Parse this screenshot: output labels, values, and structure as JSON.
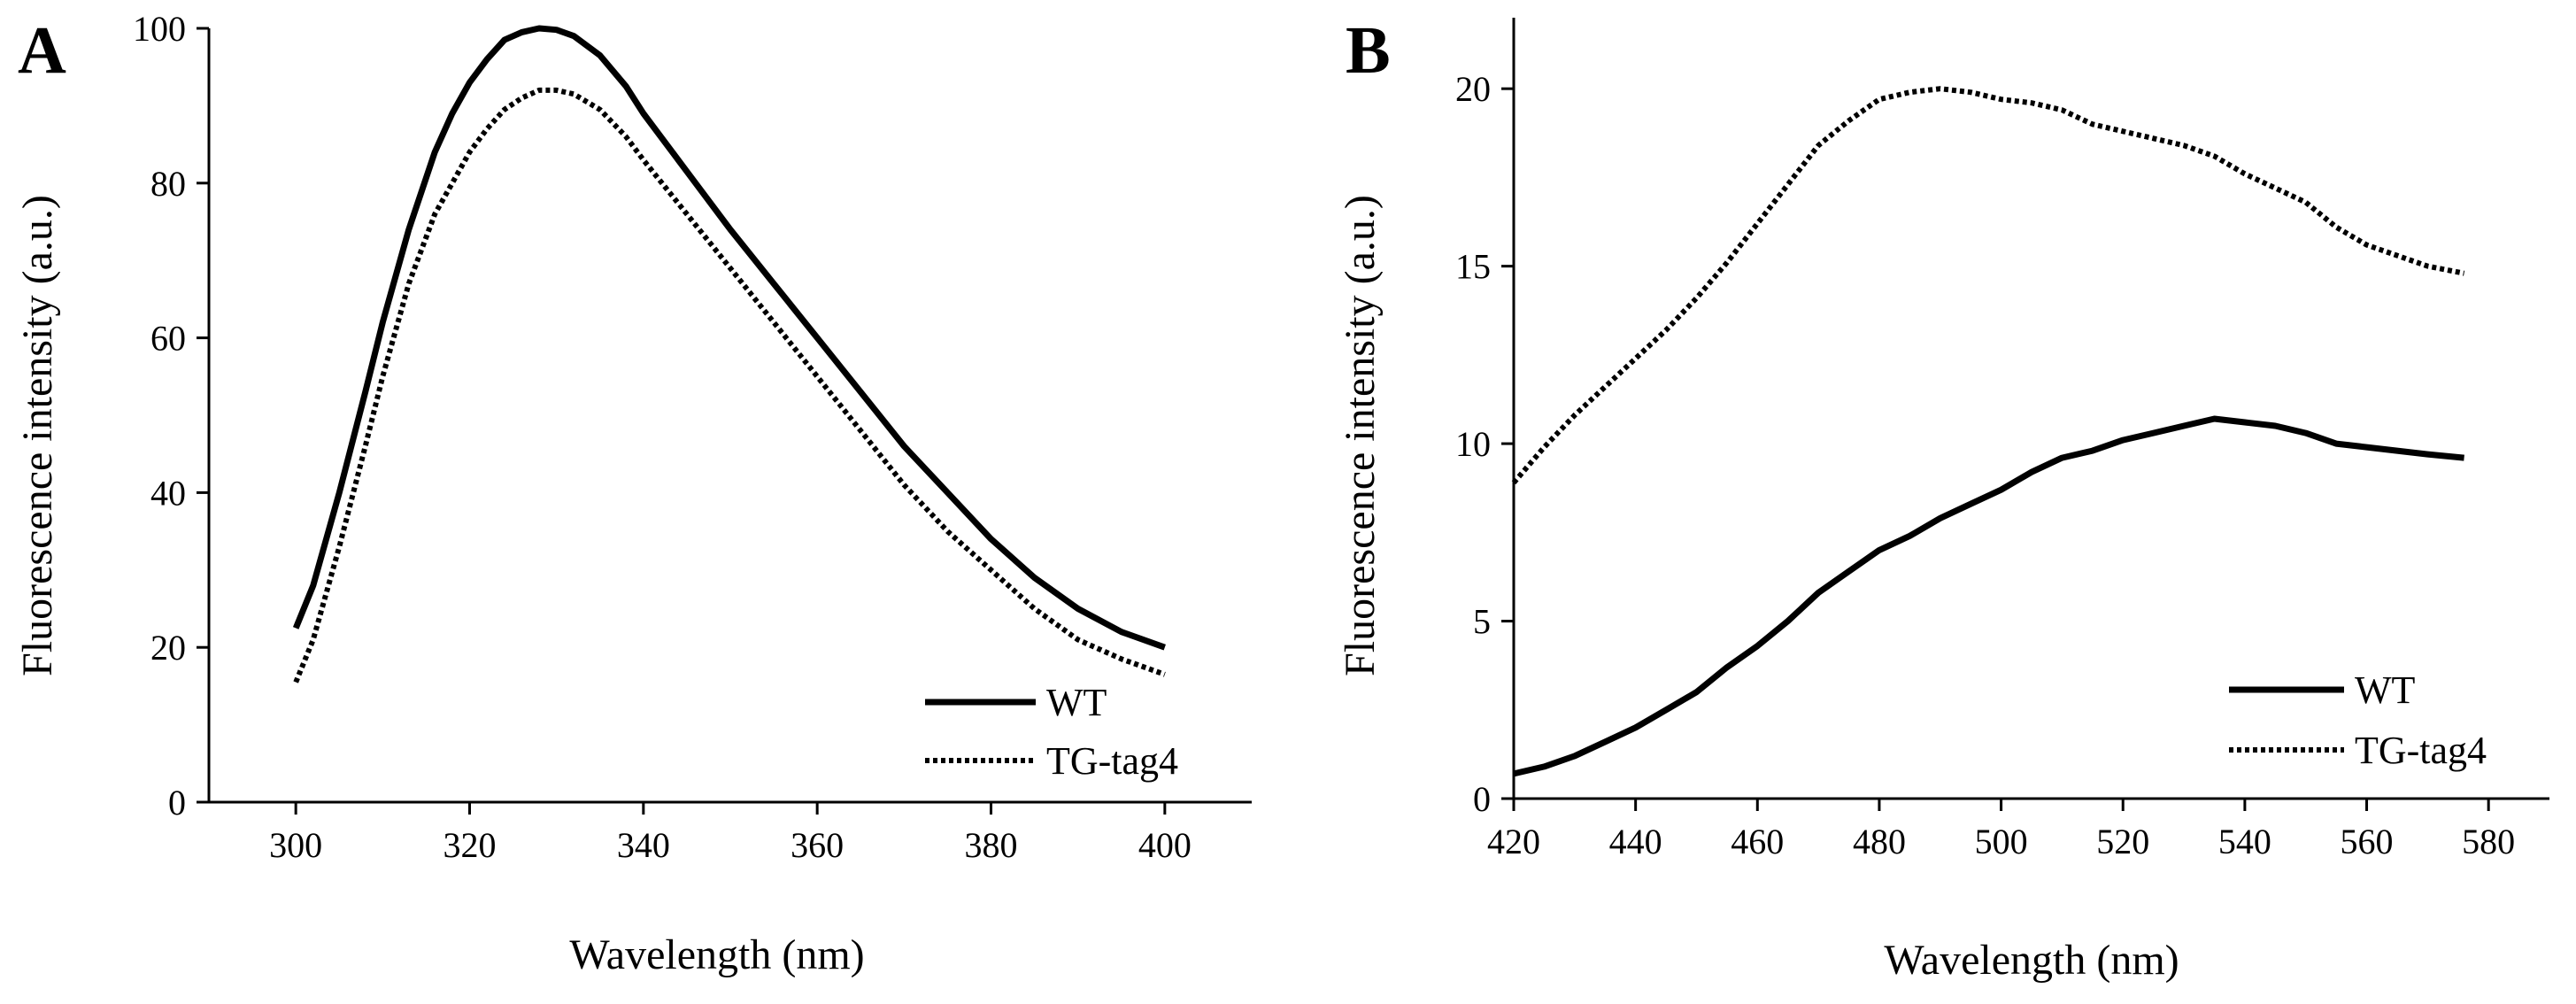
{
  "chart_data": [
    {
      "type": "line",
      "panel_label": "A",
      "title": "",
      "xlabel": "Wavelength (nm)",
      "ylabel": "Fluorescence intensity (a.u.)",
      "xlim": [
        290,
        410
      ],
      "ylim": [
        0,
        100
      ],
      "xticks": [
        300,
        320,
        340,
        360,
        380,
        400
      ],
      "yticks": [
        0,
        20,
        40,
        60,
        80,
        100
      ],
      "grid": false,
      "legend_position": "bottom-right",
      "series": [
        {
          "name": "WT",
          "style": "solid",
          "x": [
            300,
            302,
            305,
            308,
            310,
            313,
            316,
            318,
            320,
            322,
            324,
            326,
            328,
            330,
            332,
            335,
            338,
            340,
            345,
            350,
            355,
            360,
            365,
            370,
            375,
            380,
            385,
            390,
            395,
            400
          ],
          "y": [
            22.5,
            28,
            40,
            53,
            62,
            74,
            84,
            89,
            93,
            96,
            98.5,
            99.5,
            100,
            99.8,
            99,
            96.5,
            92.5,
            89,
            81.5,
            74,
            67,
            60,
            53,
            46,
            40,
            34,
            29,
            25,
            22,
            20
          ]
        },
        {
          "name": "TG-tag4",
          "style": "dotted",
          "x": [
            300,
            302,
            305,
            308,
            310,
            313,
            316,
            318,
            320,
            322,
            324,
            326,
            328,
            330,
            332,
            335,
            338,
            340,
            345,
            350,
            355,
            360,
            365,
            370,
            375,
            380,
            385,
            390,
            395,
            400
          ],
          "y": [
            15.5,
            21,
            33,
            46,
            55,
            67,
            76,
            80,
            84,
            87,
            89.5,
            91,
            92,
            92,
            91.5,
            89.5,
            86,
            83,
            76,
            69,
            62,
            55,
            48,
            41,
            35,
            30,
            25,
            21,
            18.5,
            16.5
          ]
        }
      ]
    },
    {
      "type": "line",
      "panel_label": "B",
      "title": "",
      "xlabel": "Wavelength (nm)",
      "ylabel": "Fluorescence intensity (a.u.)",
      "xlim": [
        420,
        590
      ],
      "ylim": [
        0,
        22
      ],
      "xticks": [
        420,
        440,
        460,
        480,
        500,
        520,
        540,
        560,
        580
      ],
      "yticks": [
        0,
        5,
        10,
        15,
        20
      ],
      "grid": false,
      "legend_position": "bottom-right",
      "series": [
        {
          "name": "WT",
          "style": "solid",
          "x": [
            420,
            425,
            430,
            435,
            440,
            445,
            450,
            455,
            460,
            465,
            470,
            475,
            480,
            485,
            490,
            495,
            500,
            505,
            510,
            515,
            520,
            525,
            530,
            535,
            540,
            545,
            550,
            555,
            560,
            565,
            570,
            576
          ],
          "y": [
            0.7,
            0.9,
            1.2,
            1.6,
            2.0,
            2.5,
            3.0,
            3.7,
            4.3,
            5.0,
            5.8,
            6.4,
            7.0,
            7.4,
            7.9,
            8.3,
            8.7,
            9.2,
            9.6,
            9.8,
            10.1,
            10.3,
            10.5,
            10.7,
            10.6,
            10.5,
            10.3,
            10.0,
            9.9,
            9.8,
            9.7,
            9.6
          ]
        },
        {
          "name": "TG-tag4",
          "style": "dotted",
          "x": [
            420,
            425,
            430,
            435,
            440,
            445,
            450,
            455,
            460,
            465,
            470,
            475,
            480,
            485,
            490,
            495,
            500,
            505,
            510,
            515,
            520,
            525,
            530,
            535,
            540,
            545,
            550,
            555,
            560,
            565,
            570,
            576
          ],
          "y": [
            8.9,
            9.9,
            10.8,
            11.6,
            12.4,
            13.2,
            14.1,
            15.1,
            16.2,
            17.3,
            18.4,
            19.1,
            19.7,
            19.9,
            20.0,
            19.9,
            19.7,
            19.6,
            19.4,
            19.0,
            18.8,
            18.6,
            18.4,
            18.1,
            17.6,
            17.2,
            16.8,
            16.1,
            15.6,
            15.3,
            15.0,
            14.8
          ]
        }
      ]
    }
  ]
}
